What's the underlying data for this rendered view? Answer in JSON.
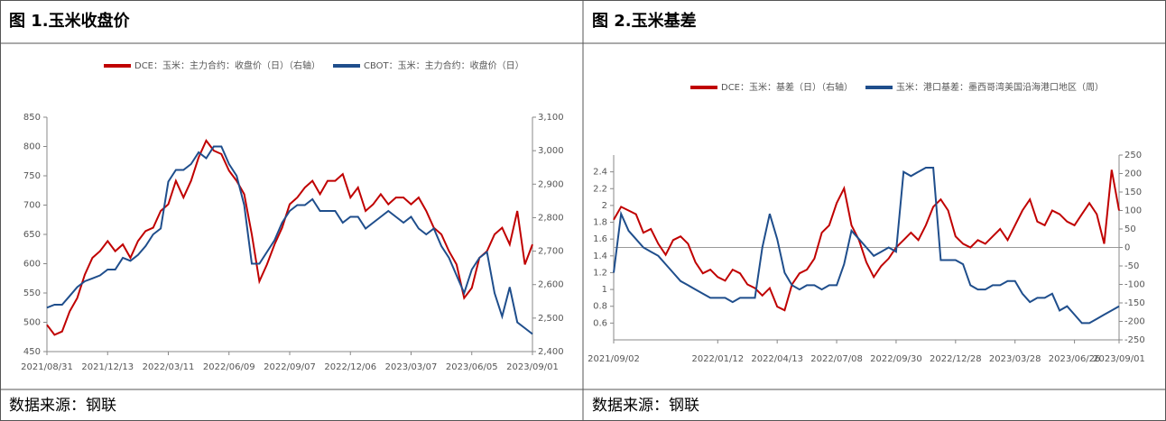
{
  "panels": [
    {
      "title": "图 1.玉米收盘价",
      "source": "数据来源：钢联"
    },
    {
      "title": "图 2.玉米基差",
      "source": "数据来源：钢联"
    }
  ],
  "chart_data": [
    {
      "type": "line",
      "categories": [
        "2021/08/31",
        null,
        null,
        null,
        null,
        null,
        null,
        null,
        "2021/12/13",
        null,
        null,
        null,
        null,
        null,
        null,
        null,
        "2022/03/11",
        null,
        null,
        null,
        null,
        null,
        null,
        null,
        "2022/06/09",
        null,
        null,
        null,
        null,
        null,
        null,
        null,
        "2022/09/07",
        null,
        null,
        null,
        null,
        null,
        null,
        null,
        "2022/12/06",
        null,
        null,
        null,
        null,
        null,
        null,
        null,
        "2023/03/07",
        null,
        null,
        null,
        null,
        null,
        null,
        null,
        "2023/06/05",
        null,
        null,
        null,
        null,
        null,
        null,
        null,
        "2023/09/01"
      ],
      "series": [
        {
          "name": "DCE：玉米：主力合约：收盘价（日）（右轴）",
          "color": "#c00000",
          "axis": "y2",
          "values": [
            2480,
            2450,
            2460,
            2520,
            2560,
            2630,
            2680,
            2700,
            2730,
            2700,
            2720,
            2680,
            2730,
            2760,
            2770,
            2820,
            2840,
            2910,
            2860,
            2910,
            2980,
            3030,
            3000,
            2990,
            2940,
            2910,
            2870,
            2750,
            2610,
            2660,
            2720,
            2770,
            2840,
            2860,
            2890,
            2910,
            2870,
            2910,
            2910,
            2930,
            2860,
            2890,
            2820,
            2840,
            2870,
            2840,
            2860,
            2860,
            2840,
            2860,
            2820,
            2770,
            2750,
            2700,
            2660,
            2560,
            2590,
            2680,
            2700,
            2750,
            2770,
            2720,
            2820,
            2660,
            2720
          ]
        },
        {
          "name": "CBOT：玉米：主力合约：收盘价（日）",
          "color": "#1f4e8c",
          "values": [
            525,
            530,
            530,
            545,
            560,
            570,
            575,
            580,
            590,
            590,
            610,
            605,
            615,
            630,
            650,
            660,
            740,
            760,
            760,
            770,
            790,
            780,
            800,
            800,
            770,
            750,
            700,
            600,
            600,
            620,
            640,
            670,
            690,
            700,
            700,
            710,
            690,
            690,
            690,
            670,
            680,
            680,
            660,
            670,
            680,
            690,
            680,
            670,
            680,
            660,
            650,
            660,
            630,
            610,
            580,
            550,
            590,
            610,
            620,
            550,
            510,
            560,
            500,
            490,
            480
          ]
        }
      ],
      "ylim": [
        450,
        850
      ],
      "yticks": [
        450,
        500,
        550,
        600,
        650,
        700,
        750,
        800,
        850
      ],
      "y2lim": [
        2400,
        3100
      ],
      "y2ticks": [
        {
          "value": 2400,
          "label": "2,400"
        },
        {
          "value": 2500,
          "label": "2,500"
        },
        {
          "value": 2600,
          "label": "2,600"
        },
        {
          "value": 2700,
          "label": "2,700"
        },
        {
          "value": 2800,
          "label": "2,800"
        },
        {
          "value": 2900,
          "label": "2,900"
        },
        {
          "value": 3000,
          "label": "3,000"
        },
        {
          "value": 3100,
          "label": "3,100"
        }
      ],
      "legend": "top"
    },
    {
      "type": "line",
      "categories": [
        "2021/09/02",
        null,
        null,
        null,
        null,
        null,
        null,
        null,
        null,
        null,
        null,
        null,
        null,
        null,
        "2022/01/12",
        null,
        null,
        null,
        null,
        null,
        null,
        null,
        "2022/04/13",
        null,
        null,
        null,
        null,
        null,
        null,
        null,
        "2022/07/08",
        null,
        null,
        null,
        null,
        null,
        null,
        null,
        "2022/09/30",
        null,
        null,
        null,
        null,
        null,
        null,
        null,
        "2022/12/28",
        null,
        null,
        null,
        null,
        null,
        null,
        null,
        "2023/03/28",
        null,
        null,
        null,
        null,
        null,
        null,
        null,
        "2023/06/26",
        null,
        null,
        null,
        null,
        null,
        "2023/09/01"
      ],
      "series": [
        {
          "name": "DCE：玉米：基差（日）（右轴）",
          "color": "#c00000",
          "axis": "y2",
          "values": [
            75,
            110,
            100,
            90,
            40,
            50,
            10,
            -20,
            20,
            30,
            10,
            -40,
            -70,
            -60,
            -80,
            -90,
            -60,
            -70,
            -100,
            -110,
            -130,
            -110,
            -160,
            -170,
            -100,
            -70,
            -60,
            -30,
            40,
            60,
            120,
            160,
            60,
            20,
            -40,
            -80,
            -50,
            -30,
            0,
            20,
            40,
            20,
            60,
            110,
            130,
            100,
            30,
            10,
            0,
            20,
            10,
            30,
            50,
            20,
            60,
            100,
            130,
            70,
            60,
            100,
            90,
            70,
            60,
            90,
            120,
            90,
            10,
            210,
            100
          ]
        },
        {
          "name": "玉米：港口基差：墨西哥湾美国沿海港口地区（周）",
          "color": "#1f4e8c",
          "values": [
            1.2,
            1.9,
            1.7,
            1.6,
            1.5,
            1.45,
            1.4,
            1.3,
            1.2,
            1.1,
            1.05,
            1,
            0.95,
            0.9,
            0.9,
            0.9,
            0.85,
            0.9,
            0.9,
            0.9,
            1.5,
            1.9,
            1.6,
            1.2,
            1.05,
            1,
            1.05,
            1.05,
            1,
            1.05,
            1.05,
            1.3,
            1.7,
            1.6,
            1.5,
            1.4,
            1.45,
            1.5,
            1.45,
            2.4,
            2.35,
            2.4,
            2.45,
            2.45,
            1.35,
            1.35,
            1.35,
            1.3,
            1.05,
            1,
            1,
            1.05,
            1.05,
            1.1,
            1.1,
            0.95,
            0.85,
            0.9,
            0.9,
            0.95,
            0.75,
            0.8,
            0.7,
            0.6,
            0.6,
            0.65,
            0.7,
            0.75,
            0.8
          ]
        }
      ],
      "ylim": [
        0.4,
        2.6
      ],
      "yticks": [
        0.6,
        0.8,
        1,
        1.2,
        1.4,
        1.6,
        1.8,
        2,
        2.2,
        2.4
      ],
      "y2lim": [
        -250,
        250
      ],
      "y2ticks": [
        -250,
        -200,
        -150,
        -100,
        -50,
        0,
        50,
        100,
        150,
        200,
        250
      ],
      "legend": "top"
    }
  ]
}
